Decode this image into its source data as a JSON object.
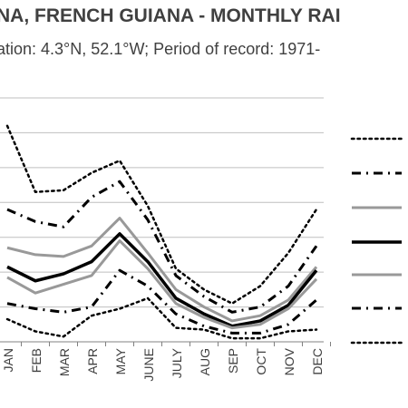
{
  "header": {
    "title": "NA, FRENCH GUIANA - MONTHLY RAI",
    "subtitle": "ation: 4.3°N, 52.1°W; Period of record: 1971-"
  },
  "chart_data": {
    "type": "line",
    "title": "NA, FRENCH GUIANA - MONTHLY RAI",
    "subtitle": "ation: 4.3°N, 52.1°W; Period of record: 1971-",
    "categories": [
      "JAN",
      "FEB",
      "MAR",
      "APR",
      "MAY",
      "JUNE",
      "JULY",
      "AUG",
      "SEP",
      "OCT",
      "NOV",
      "DEC"
    ],
    "ylim": [
      0,
      7
    ],
    "grid": true,
    "legend_position": "right",
    "series": [
      {
        "style": "dotted-thin",
        "color": "#000000",
        "values": [
          6.2,
          4.3,
          4.35,
          4.85,
          5.2,
          3.9,
          2.1,
          1.5,
          1.1,
          1.6,
          2.55,
          3.8
        ]
      },
      {
        "style": "dash-dot",
        "color": "#000000",
        "values": [
          3.8,
          3.45,
          3.3,
          4.15,
          4.6,
          3.5,
          1.9,
          1.3,
          0.85,
          1.0,
          1.6,
          2.75
        ]
      },
      {
        "style": "solid-grey",
        "color": "#999999",
        "values": [
          2.7,
          2.5,
          2.45,
          2.75,
          3.55,
          2.55,
          1.5,
          1.0,
          0.6,
          0.75,
          1.2,
          2.15
        ]
      },
      {
        "style": "solid-black",
        "color": "#000000",
        "values": [
          2.15,
          1.75,
          1.95,
          2.3,
          3.1,
          2.3,
          1.25,
          0.8,
          0.45,
          0.6,
          1.05,
          2.05
        ]
      },
      {
        "style": "solid-grey",
        "color": "#999999",
        "values": [
          1.85,
          1.4,
          1.65,
          1.9,
          2.9,
          2.1,
          1.1,
          0.7,
          0.4,
          0.5,
          0.95,
          1.8
        ]
      },
      {
        "style": "dash-dot",
        "color": "#000000",
        "values": [
          1.1,
          0.95,
          0.85,
          1.0,
          2.05,
          1.6,
          0.8,
          0.45,
          0.25,
          0.25,
          0.5,
          1.2
        ]
      },
      {
        "style": "dotted-thin",
        "color": "#000000",
        "values": [
          0.65,
          0.3,
          0.15,
          0.75,
          0.95,
          1.25,
          0.4,
          0.35,
          0.1,
          0.1,
          0.3,
          0.35
        ]
      }
    ]
  }
}
